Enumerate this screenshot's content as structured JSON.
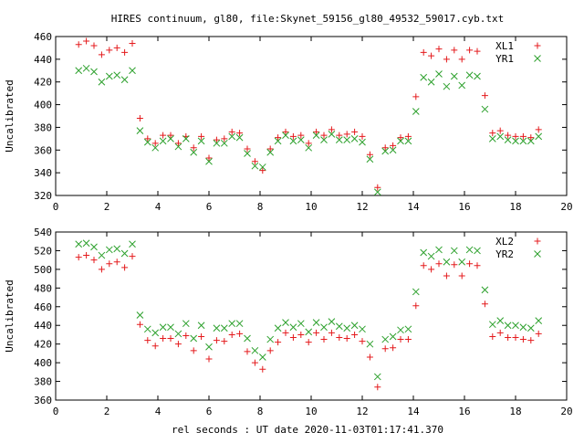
{
  "title": "HIRES continuum, gl80, file:Skynet_59156_gl80_49532_59017.cyb.txt",
  "xlabel": "rel seconds : UT date 2020-11-03T01:17:41.370",
  "colors": {
    "series1": "#e41a1c",
    "series2": "#2ca02c"
  },
  "chart_data": [
    {
      "type": "scatter",
      "ylabel": "Uncalibrated",
      "xlim": [
        0,
        20
      ],
      "ylim": [
        320,
        460
      ],
      "xticks": [
        0,
        2,
        4,
        6,
        8,
        10,
        12,
        14,
        16,
        18,
        20
      ],
      "yticks": [
        320,
        340,
        360,
        380,
        400,
        420,
        440,
        460
      ],
      "x": [
        0.9,
        1.2,
        1.5,
        1.8,
        2.1,
        2.4,
        2.7,
        3.0,
        3.3,
        3.6,
        3.9,
        4.2,
        4.5,
        4.8,
        5.1,
        5.4,
        5.7,
        6.0,
        6.3,
        6.6,
        6.9,
        7.2,
        7.5,
        7.8,
        8.1,
        8.4,
        8.7,
        9.0,
        9.3,
        9.6,
        9.9,
        10.2,
        10.5,
        10.8,
        11.1,
        11.4,
        11.7,
        12.0,
        12.3,
        12.6,
        12.9,
        13.2,
        13.5,
        13.8,
        14.1,
        14.4,
        14.7,
        15.0,
        15.3,
        15.6,
        15.9,
        16.2,
        16.5,
        16.8,
        17.1,
        17.4,
        17.7,
        18.0,
        18.3,
        18.6,
        18.9
      ],
      "legend": "top-right",
      "series": [
        {
          "name": "XL1",
          "marker": "plus",
          "color": "#e41a1c",
          "values": [
            453,
            456,
            452,
            444,
            448,
            450,
            446,
            454,
            388,
            370,
            366,
            373,
            373,
            366,
            372,
            362,
            372,
            353,
            369,
            370,
            376,
            375,
            361,
            350,
            342,
            361,
            371,
            376,
            372,
            373,
            366,
            376,
            373,
            378,
            373,
            374,
            376,
            372,
            356,
            327,
            362,
            364,
            371,
            372,
            407,
            446,
            443,
            449,
            440,
            448,
            440,
            448,
            447,
            408,
            375,
            377,
            373,
            372,
            372,
            371,
            378
          ]
        },
        {
          "name": "YR1",
          "marker": "cross",
          "color": "#2ca02c",
          "values": [
            430,
            432,
            429,
            420,
            425,
            426,
            422,
            430,
            377,
            367,
            362,
            368,
            370,
            363,
            370,
            358,
            368,
            350,
            366,
            366,
            372,
            371,
            357,
            346,
            345,
            358,
            368,
            373,
            368,
            369,
            362,
            373,
            369,
            374,
            369,
            369,
            370,
            367,
            352,
            323,
            359,
            360,
            368,
            368,
            394,
            424,
            420,
            427,
            416,
            425,
            417,
            426,
            425,
            396,
            370,
            372,
            369,
            368,
            368,
            368,
            372
          ]
        }
      ]
    },
    {
      "type": "scatter",
      "ylabel": "Uncalibrated",
      "xlim": [
        0,
        20
      ],
      "ylim": [
        360,
        540
      ],
      "xticks": [
        0,
        2,
        4,
        6,
        8,
        10,
        12,
        14,
        16,
        18,
        20
      ],
      "yticks": [
        360,
        380,
        400,
        420,
        440,
        460,
        480,
        500,
        520,
        540
      ],
      "x": [
        0.9,
        1.2,
        1.5,
        1.8,
        2.1,
        2.4,
        2.7,
        3.0,
        3.3,
        3.6,
        3.9,
        4.2,
        4.5,
        4.8,
        5.1,
        5.4,
        5.7,
        6.0,
        6.3,
        6.6,
        6.9,
        7.2,
        7.5,
        7.8,
        8.1,
        8.4,
        8.7,
        9.0,
        9.3,
        9.6,
        9.9,
        10.2,
        10.5,
        10.8,
        11.1,
        11.4,
        11.7,
        12.0,
        12.3,
        12.6,
        12.9,
        13.2,
        13.5,
        13.8,
        14.1,
        14.4,
        14.7,
        15.0,
        15.3,
        15.6,
        15.9,
        16.2,
        16.5,
        16.8,
        17.1,
        17.4,
        17.7,
        18.0,
        18.3,
        18.6,
        18.9
      ],
      "legend": "top-right",
      "series": [
        {
          "name": "XL2",
          "marker": "plus",
          "color": "#e41a1c",
          "values": [
            513,
            515,
            510,
            500,
            506,
            508,
            502,
            514,
            441,
            424,
            418,
            426,
            426,
            420,
            429,
            413,
            428,
            404,
            424,
            423,
            430,
            431,
            412,
            400,
            393,
            413,
            422,
            432,
            427,
            430,
            422,
            432,
            425,
            432,
            427,
            426,
            430,
            423,
            406,
            374,
            415,
            416,
            425,
            425,
            461,
            504,
            500,
            506,
            493,
            505,
            493,
            506,
            504,
            463,
            428,
            432,
            427,
            427,
            425,
            424,
            431
          ]
        },
        {
          "name": "YR2",
          "marker": "cross",
          "color": "#2ca02c",
          "values": [
            527,
            528,
            524,
            515,
            521,
            522,
            517,
            527,
            451,
            436,
            432,
            438,
            438,
            431,
            442,
            426,
            440,
            417,
            437,
            437,
            442,
            442,
            426,
            413,
            406,
            425,
            437,
            443,
            438,
            442,
            433,
            443,
            438,
            444,
            439,
            437,
            440,
            436,
            420,
            385,
            425,
            428,
            435,
            436,
            476,
            518,
            514,
            521,
            508,
            520,
            508,
            521,
            520,
            478,
            441,
            445,
            440,
            440,
            438,
            437,
            445
          ]
        }
      ]
    }
  ]
}
